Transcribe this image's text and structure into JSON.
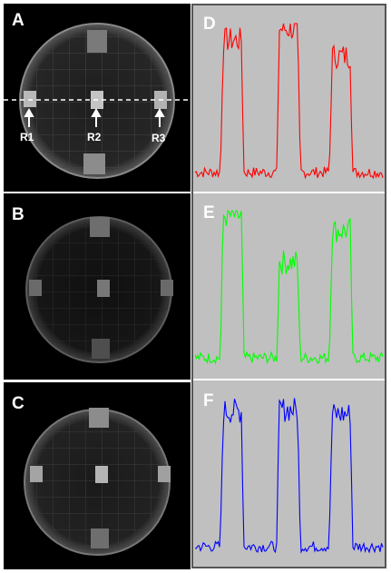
{
  "panels": {
    "a": "A",
    "b": "B",
    "c": "C",
    "d": "D",
    "e": "E",
    "f": "F"
  },
  "roi_labels": {
    "r1": "R1",
    "r2": "R2",
    "r3": "R3"
  },
  "colors": {
    "d_trace": "#ff0000",
    "e_trace": "#00ff00",
    "f_trace": "#0000ff",
    "plot_background": "#c0c0c0",
    "image_background": "#000000"
  },
  "profiles": [
    {
      "panel": "d",
      "color": "#ff0000",
      "baseline": 0.05,
      "peaks": [
        0.88,
        0.95,
        0.78
      ]
    },
    {
      "panel": "e",
      "color": "#00ff00",
      "baseline": 0.06,
      "peaks": [
        0.95,
        0.66,
        0.86
      ]
    },
    {
      "panel": "f",
      "color": "#0000ff",
      "baseline": 0.05,
      "peaks": [
        0.9,
        0.91,
        0.88
      ]
    }
  ]
}
